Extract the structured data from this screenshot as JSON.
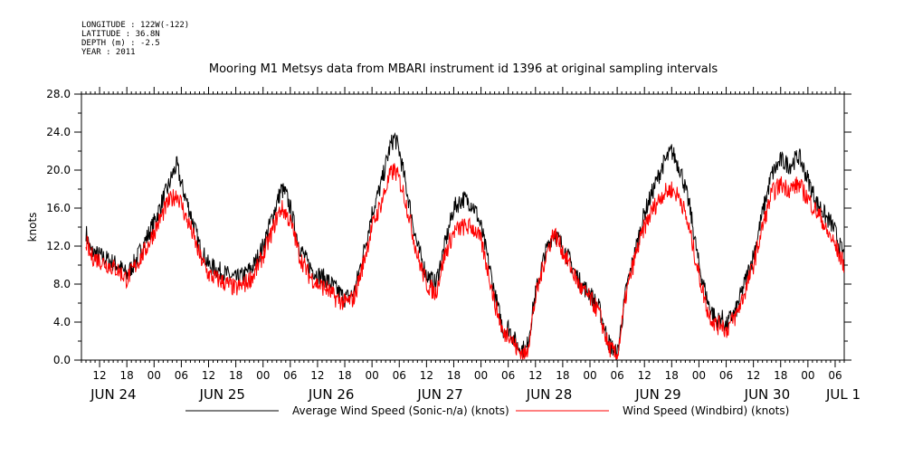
{
  "header": {
    "longitude": "LONGITUDE : 122W(-122)",
    "latitude": "LATITUDE : 36.8N",
    "depth": "DEPTH (m) : -2.5",
    "year": "YEAR : 2011"
  },
  "chart_data": {
    "type": "line",
    "title": "Mooring M1 Metsys data from MBARI instrument id 1396 at original sampling intervals",
    "ylabel": "knots",
    "xlabel": "",
    "ylim": [
      0,
      28
    ],
    "yticks": [
      "0.0",
      "4.0",
      "8.0",
      "12.0",
      "16.0",
      "20.0",
      "24.0",
      "28.0"
    ],
    "xlim_hours": [
      8,
      176
    ],
    "hour_ticks": {
      "positions": [
        12,
        18,
        24,
        30,
        36,
        42,
        48,
        54,
        60,
        66,
        72,
        78,
        84,
        90,
        96,
        102,
        108,
        114,
        120,
        126,
        132,
        138,
        144,
        150,
        156,
        162,
        168,
        174
      ],
      "labels": [
        "12",
        "18",
        "00",
        "06",
        "12",
        "18",
        "00",
        "06",
        "12",
        "18",
        "00",
        "06",
        "12",
        "18",
        "00",
        "06",
        "12",
        "18",
        "00",
        "06",
        "12",
        "18",
        "00",
        "06",
        "12",
        "18",
        "00",
        "06"
      ]
    },
    "date_labels": [
      {
        "text": "JUN 24",
        "hour": 12
      },
      {
        "text": "JUN 25",
        "hour": 36
      },
      {
        "text": "JUN 26",
        "hour": 60
      },
      {
        "text": "JUN 27",
        "hour": 84
      },
      {
        "text": "JUN 28",
        "hour": 108
      },
      {
        "text": "JUN 29",
        "hour": 132
      },
      {
        "text": "JUN 30",
        "hour": 156
      },
      {
        "text": "JUL  1",
        "hour": 174
      }
    ],
    "grid": false,
    "legend_position": "bottom",
    "series": [
      {
        "name": "Average Wind Speed (Sonic-n/a) (knots)",
        "color": "#000000",
        "x": [
          9,
          10,
          12,
          14,
          16,
          18,
          20,
          22,
          24,
          26,
          27,
          28,
          29,
          30,
          31,
          32,
          34,
          36,
          38,
          40,
          42,
          44,
          46,
          48,
          50,
          51,
          52,
          53,
          54,
          55,
          56,
          58,
          60,
          62,
          64,
          66,
          68,
          70,
          72,
          74,
          75,
          76,
          77,
          78,
          79,
          80,
          82,
          84,
          86,
          88,
          90,
          92,
          94,
          95,
          96,
          98,
          99,
          100,
          101,
          102,
          104,
          106,
          108,
          110,
          112,
          114,
          116,
          118,
          120,
          122,
          124,
          126,
          128,
          130,
          132,
          134,
          136,
          138,
          140,
          142,
          144,
          146,
          148,
          149,
          150,
          151,
          152,
          154,
          156,
          158,
          160,
          162,
          164,
          166,
          168,
          170,
          171,
          172,
          173,
          174,
          175,
          176
        ],
        "y": [
          13.5,
          11.5,
          11.0,
          10.5,
          10.0,
          9.0,
          10.5,
          12.5,
          14.5,
          17.0,
          18.0,
          19.5,
          20.5,
          18.5,
          17.0,
          15.5,
          12.0,
          10.0,
          9.5,
          9.0,
          8.5,
          9.0,
          10.0,
          12.0,
          15.0,
          16.5,
          18.0,
          17.5,
          16.0,
          14.0,
          12.0,
          10.0,
          9.0,
          8.5,
          7.5,
          6.5,
          7.0,
          11.0,
          15.5,
          18.5,
          20.5,
          22.5,
          23.5,
          22.0,
          19.5,
          17.0,
          12.0,
          9.0,
          8.0,
          12.0,
          16.0,
          17.0,
          16.5,
          15.5,
          14.0,
          9.5,
          7.0,
          5.0,
          3.0,
          3.5,
          1.5,
          1.0,
          7.0,
          11.0,
          13.5,
          12.0,
          10.0,
          8.0,
          7.0,
          5.5,
          2.0,
          0.5,
          7.5,
          11.5,
          15.5,
          18.0,
          20.5,
          22.0,
          20.0,
          16.0,
          10.0,
          6.0,
          4.0,
          4.5,
          3.5,
          4.5,
          5.0,
          8.0,
          11.0,
          15.5,
          19.5,
          21.0,
          20.5,
          21.5,
          19.0,
          16.5,
          16.0,
          15.0,
          14.5,
          13.5,
          12.0,
          11.0
        ]
      },
      {
        "name": "Wind Speed (Windbird) (knots)",
        "color": "#ff0000",
        "x": [
          9,
          10,
          12,
          14,
          16,
          18,
          20,
          22,
          24,
          26,
          27,
          28,
          29,
          30,
          31,
          32,
          34,
          36,
          38,
          40,
          42,
          44,
          46,
          48,
          50,
          51,
          52,
          53,
          54,
          55,
          56,
          58,
          60,
          62,
          64,
          66,
          68,
          70,
          72,
          74,
          75,
          76,
          77,
          78,
          79,
          80,
          82,
          84,
          86,
          88,
          90,
          92,
          94,
          95,
          96,
          98,
          99,
          100,
          101,
          102,
          104,
          106,
          108,
          110,
          112,
          114,
          116,
          118,
          120,
          122,
          124,
          126,
          128,
          130,
          132,
          134,
          136,
          138,
          140,
          142,
          144,
          146,
          148,
          149,
          150,
          151,
          152,
          154,
          156,
          158,
          160,
          162,
          164,
          166,
          168,
          170,
          171,
          172,
          173,
          174,
          175,
          176
        ],
        "y": [
          12.5,
          11.0,
          10.5,
          10.0,
          9.5,
          8.5,
          10.0,
          11.5,
          13.5,
          15.5,
          16.5,
          17.0,
          17.5,
          16.5,
          15.0,
          14.0,
          11.0,
          9.0,
          8.5,
          8.0,
          7.5,
          8.0,
          9.0,
          11.0,
          13.5,
          15.0,
          16.0,
          15.5,
          14.5,
          13.0,
          11.0,
          9.0,
          8.0,
          7.5,
          6.5,
          6.0,
          6.5,
          10.0,
          14.0,
          16.5,
          18.0,
          19.5,
          20.0,
          19.0,
          17.5,
          15.5,
          11.0,
          8.0,
          7.0,
          11.0,
          13.5,
          14.0,
          14.0,
          13.5,
          12.5,
          8.5,
          6.0,
          4.5,
          2.5,
          3.0,
          1.0,
          0.5,
          6.5,
          10.5,
          13.5,
          11.5,
          9.5,
          7.5,
          6.5,
          5.0,
          1.5,
          0.3,
          7.0,
          11.0,
          14.0,
          16.0,
          17.5,
          18.0,
          17.0,
          13.5,
          9.0,
          5.0,
          3.5,
          4.0,
          3.0,
          4.0,
          4.5,
          7.0,
          10.0,
          14.0,
          17.5,
          18.5,
          18.0,
          18.5,
          17.0,
          15.5,
          15.0,
          13.5,
          13.0,
          12.0,
          11.0,
          10.0
        ]
      }
    ]
  }
}
